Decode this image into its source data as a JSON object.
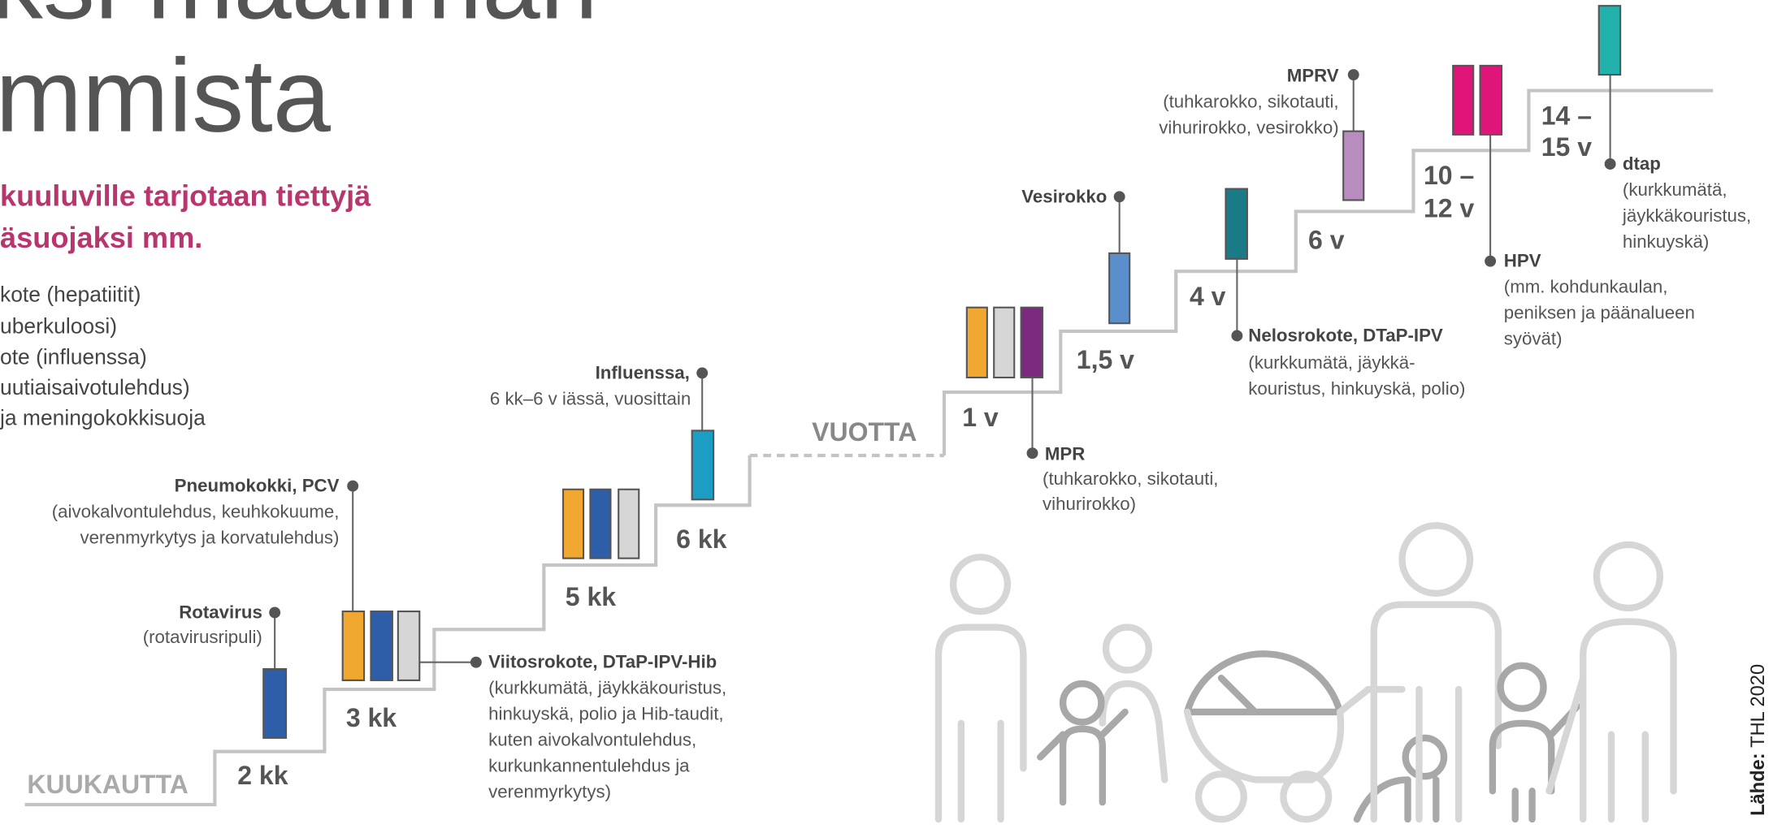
{
  "header": {
    "title_lines": [
      "ksi maailman",
      "mmista"
    ],
    "subtitle_lines": [
      "kuuluville tarjotaan tiettyjä",
      "äsuojaksi mm."
    ],
    "list": [
      "kote (hepatiitit)",
      "uberkuloosi)",
      "ote (influenssa)",
      "uutiaisaivotulehdus)",
      "ja meningokokkisuoja"
    ]
  },
  "timeline": {
    "months_label": "KUUKAUTTA",
    "years_label": "VUOTTA",
    "steps": [
      "2 kk",
      "3 kk",
      "5 kk",
      "6 kk",
      "1 v",
      "1,5 v",
      "4 v",
      "6 v",
      [
        "10 –",
        "12 v"
      ],
      [
        "14 –",
        "15 v"
      ]
    ]
  },
  "vaccines": [
    {
      "name": "Rotavirus",
      "details": [
        "(rotavirusripuli)"
      ]
    },
    {
      "name": "Pneumokokki, PCV",
      "details": [
        "(aivokalvontulehdus, keuhkokuume,",
        "verenmyrkytys ja korvatulehdus)"
      ]
    },
    {
      "name": "Viitosrokote, DTaP-IPV-Hib",
      "details": [
        "(kurkkumätä, jäykkäkouristus,",
        "hinkuyskä, polio ja Hib-taudit,",
        "kuten aivokalvontulehdus,",
        "kurkunkannentulehdus ja",
        "verenmyrkytys)"
      ]
    },
    {
      "name": "Influenssa,",
      "details": [
        "6 kk–6 v iässä, vuosittain"
      ]
    },
    {
      "name": "MPR",
      "details": [
        "(tuhkarokko, sikotauti,",
        "vihurirokko)"
      ]
    },
    {
      "name": "Vesirokko",
      "details": []
    },
    {
      "name": "Nelosrokote, DTaP-IPV",
      "details": [
        "(kurkkumätä, jäykkä-",
        "kouristus, hinkuyskä, polio)"
      ]
    },
    {
      "name": "MPRV",
      "details": [
        "(tuhkarokko, sikotauti,",
        "vihurirokko, vesirokko)"
      ]
    },
    {
      "name": "HPV",
      "details": [
        "(mm. kohdunkaulan,",
        "peniksen ja päänalueen",
        "syövät)"
      ]
    },
    {
      "name": "dtap",
      "details": [
        "(kurkkumätä,",
        "jäykkäkouristus,",
        "hinkuyskä)"
      ]
    }
  ],
  "source": {
    "label": "Lähde:",
    "text": "THL 2020"
  }
}
